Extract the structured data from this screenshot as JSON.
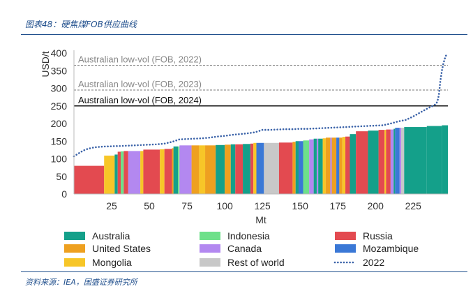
{
  "figure": {
    "caption": "图表48：硬焦煤FOB供应曲线",
    "source": "资料来源：IEA，国盛证券研究所"
  },
  "chart_data": {
    "type": "bar",
    "subtype": "supply-cost curve (variable-width bars)",
    "xlabel": "Mt",
    "ylabel": "USD/t",
    "xlim": [
      0,
      248
    ],
    "ylim": [
      0,
      400
    ],
    "xticks": [
      25,
      50,
      75,
      100,
      125,
      150,
      175,
      200,
      225
    ],
    "yticks": [
      0,
      50,
      100,
      150,
      200,
      250,
      300,
      350,
      400
    ],
    "grid": false,
    "legend_position": "bottom",
    "colors": {
      "Australia": "#14a08a",
      "Indonesia": "#6ee08a",
      "Russia": "#e34a50",
      "United States": "#eea020",
      "Canada": "#b388f0",
      "Mozambique": "#3a78d6",
      "Mongolia": "#f7c628",
      "Rest of world": "#c8c8c8",
      "2022": "#3a62a8"
    },
    "legend": [
      "Australia",
      "Indonesia",
      "Russia",
      "United States",
      "Canada",
      "Mozambique",
      "Mongolia",
      "Rest of world",
      "2022"
    ],
    "reference_lines": [
      {
        "label": "Australian low-vol (FOB, 2022)",
        "value": 365,
        "style": "dashed"
      },
      {
        "label": "Australian low-vol (FOB, 2023)",
        "value": 295,
        "style": "dashed"
      },
      {
        "label": "Australian low-vol (FOB, 2024)",
        "value": 250,
        "style": "solid"
      }
    ],
    "segments": [
      {
        "start": 0,
        "end": 20,
        "cost": 80,
        "country": "Russia"
      },
      {
        "start": 20,
        "end": 27,
        "cost": 109,
        "country": "Mongolia"
      },
      {
        "start": 27,
        "end": 29,
        "cost": 112,
        "country": "Australia"
      },
      {
        "start": 29,
        "end": 31,
        "cost": 120,
        "country": "Russia"
      },
      {
        "start": 31,
        "end": 33,
        "cost": 121,
        "country": "Indonesia"
      },
      {
        "start": 33,
        "end": 36,
        "cost": 122,
        "country": "Russia"
      },
      {
        "start": 36,
        "end": 44,
        "cost": 122,
        "country": "Canada"
      },
      {
        "start": 44,
        "end": 46,
        "cost": 122,
        "country": "Mongolia"
      },
      {
        "start": 46,
        "end": 57,
        "cost": 126,
        "country": "Russia"
      },
      {
        "start": 57,
        "end": 60,
        "cost": 127,
        "country": "Mongolia"
      },
      {
        "start": 60,
        "end": 65,
        "cost": 128,
        "country": "Russia"
      },
      {
        "start": 65,
        "end": 66,
        "cost": 130,
        "country": "United States"
      },
      {
        "start": 66,
        "end": 69,
        "cost": 135,
        "country": "Australia"
      },
      {
        "start": 69,
        "end": 70,
        "cost": 135,
        "country": "Indonesia"
      },
      {
        "start": 70,
        "end": 78,
        "cost": 138,
        "country": "Canada"
      },
      {
        "start": 78,
        "end": 83,
        "cost": 138,
        "country": "United States"
      },
      {
        "start": 83,
        "end": 87,
        "cost": 138,
        "country": "Mongolia"
      },
      {
        "start": 87,
        "end": 94,
        "cost": 138,
        "country": "United States"
      },
      {
        "start": 94,
        "end": 100,
        "cost": 139,
        "country": "Australia"
      },
      {
        "start": 100,
        "end": 104,
        "cost": 140,
        "country": "United States"
      },
      {
        "start": 104,
        "end": 107,
        "cost": 141,
        "country": "Australia"
      },
      {
        "start": 107,
        "end": 112,
        "cost": 141,
        "country": "Russia"
      },
      {
        "start": 112,
        "end": 117,
        "cost": 142,
        "country": "Australia"
      },
      {
        "start": 117,
        "end": 119,
        "cost": 143,
        "country": "Russia"
      },
      {
        "start": 119,
        "end": 121,
        "cost": 145,
        "country": "Mongolia"
      },
      {
        "start": 121,
        "end": 126,
        "cost": 145,
        "country": "Mozambique"
      },
      {
        "start": 126,
        "end": 136,
        "cost": 145,
        "country": "Rest of world"
      },
      {
        "start": 136,
        "end": 145,
        "cost": 146,
        "country": "Russia"
      },
      {
        "start": 145,
        "end": 147,
        "cost": 148,
        "country": "United States"
      },
      {
        "start": 147,
        "end": 149,
        "cost": 150,
        "country": "Australia"
      },
      {
        "start": 149,
        "end": 152,
        "cost": 150,
        "country": "Mozambique"
      },
      {
        "start": 152,
        "end": 156,
        "cost": 152,
        "country": "Indonesia"
      },
      {
        "start": 156,
        "end": 159,
        "cost": 155,
        "country": "Canada"
      },
      {
        "start": 159,
        "end": 161,
        "cost": 157,
        "country": "Australia"
      },
      {
        "start": 161,
        "end": 162,
        "cost": 157,
        "country": "Canada"
      },
      {
        "start": 162,
        "end": 165,
        "cost": 157,
        "country": "Australia"
      },
      {
        "start": 165,
        "end": 167,
        "cost": 158,
        "country": "Mongolia"
      },
      {
        "start": 167,
        "end": 170,
        "cost": 160,
        "country": "United States"
      },
      {
        "start": 170,
        "end": 171,
        "cost": 160,
        "country": "Canada"
      },
      {
        "start": 171,
        "end": 174,
        "cost": 160,
        "country": "United States"
      },
      {
        "start": 174,
        "end": 176,
        "cost": 160,
        "country": "Mozambique"
      },
      {
        "start": 176,
        "end": 178,
        "cost": 160,
        "country": "United States"
      },
      {
        "start": 178,
        "end": 180,
        "cost": 162,
        "country": "Mongolia"
      },
      {
        "start": 180,
        "end": 183,
        "cost": 163,
        "country": "Russia"
      },
      {
        "start": 183,
        "end": 187,
        "cost": 170,
        "country": "Australia"
      },
      {
        "start": 187,
        "end": 195,
        "cost": 178,
        "country": "Russia"
      },
      {
        "start": 195,
        "end": 202,
        "cost": 180,
        "country": "Australia"
      },
      {
        "start": 202,
        "end": 206,
        "cost": 182,
        "country": "Russia"
      },
      {
        "start": 206,
        "end": 207,
        "cost": 182,
        "country": "Mongolia"
      },
      {
        "start": 207,
        "end": 210,
        "cost": 183,
        "country": "Russia"
      },
      {
        "start": 210,
        "end": 212,
        "cost": 183,
        "country": "Canada"
      },
      {
        "start": 212,
        "end": 213,
        "cost": 185,
        "country": "Australia"
      },
      {
        "start": 213,
        "end": 216,
        "cost": 188,
        "country": "Mozambique"
      },
      {
        "start": 216,
        "end": 217,
        "cost": 188,
        "country": "Canada"
      },
      {
        "start": 217,
        "end": 219,
        "cost": 188,
        "country": "Rest of world"
      },
      {
        "start": 219,
        "end": 234,
        "cost": 190,
        "country": "Australia"
      },
      {
        "start": 234,
        "end": 244,
        "cost": 193,
        "country": "Australia"
      },
      {
        "start": 244,
        "end": 248,
        "cost": 195,
        "country": "Australia"
      }
    ],
    "line_2022": {
      "name": "2022",
      "x": [
        0,
        3,
        6,
        9,
        12,
        15,
        18,
        21,
        24,
        27,
        30,
        35,
        40,
        45,
        50,
        55,
        60,
        65,
        70,
        75,
        80,
        85,
        90,
        95,
        100,
        105,
        110,
        115,
        120,
        125,
        130,
        135,
        140,
        145,
        150,
        155,
        160,
        165,
        170,
        175,
        180,
        185,
        190,
        195,
        200,
        205,
        210,
        215,
        220,
        225,
        230,
        235,
        238,
        240,
        241,
        242,
        243,
        244,
        245,
        246,
        247
      ],
      "y": [
        107,
        115,
        123,
        128,
        131,
        133,
        134,
        135,
        135,
        136,
        136,
        137,
        138,
        139,
        140,
        141,
        143,
        148,
        155,
        156,
        157,
        158,
        160,
        163,
        165,
        168,
        170,
        172,
        175,
        182,
        182,
        183,
        184,
        184,
        185,
        185,
        186,
        187,
        188,
        189,
        190,
        191,
        192,
        193,
        194,
        195,
        200,
        206,
        210,
        220,
        232,
        244,
        250,
        255,
        262,
        280,
        320,
        350,
        370,
        385,
        395
      ]
    }
  }
}
